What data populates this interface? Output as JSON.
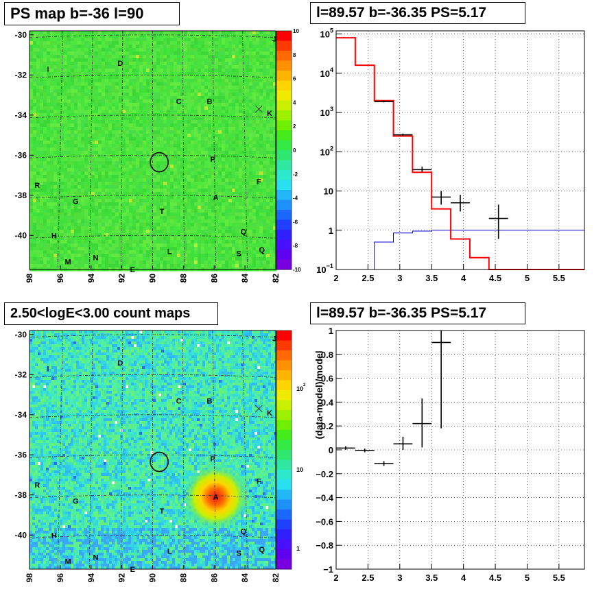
{
  "chart_data": [
    {
      "type": "heatmap",
      "title": "PS map b=-36 l=90",
      "xlabel": "",
      "ylabel": "",
      "xlim": [
        98,
        82
      ],
      "ylim": [
        -41.7,
        -29.8
      ],
      "x_ticks": [
        "98",
        "96",
        "94",
        "92",
        "90",
        "88",
        "86",
        "84",
        "82"
      ],
      "y_ticks": [
        "-30",
        "-32",
        "-34",
        "-36",
        "-38",
        "-40"
      ],
      "colorbar": {
        "min": -10,
        "max": 10,
        "ticks": [
          "10",
          "8",
          "6",
          "4",
          "2",
          "0",
          "-2",
          "-4",
          "-6",
          "-8",
          "-10"
        ]
      },
      "labels": [
        {
          "text": "I",
          "l": 96.8,
          "b": -31.7
        },
        {
          "text": "D",
          "l": 92.1,
          "b": -31.4
        },
        {
          "text": "J",
          "l": 82.1,
          "b": -30.2
        },
        {
          "text": "C",
          "l": 88.3,
          "b": -33.3
        },
        {
          "text": "B",
          "l": 86.3,
          "b": -33.3
        },
        {
          "text": "K",
          "l": 82.4,
          "b": -33.9
        },
        {
          "text": "P",
          "l": 86.1,
          "b": -36.2
        },
        {
          "text": "F",
          "l": 83.1,
          "b": -37.3
        },
        {
          "text": "R",
          "l": 97.5,
          "b": -37.5
        },
        {
          "text": "A",
          "l": 85.9,
          "b": -38.1
        },
        {
          "text": "G",
          "l": 95.0,
          "b": -38.3
        },
        {
          "text": "T",
          "l": 89.4,
          "b": -38.8
        },
        {
          "text": "Q",
          "l": 84.1,
          "b": -39.8
        },
        {
          "text": "H",
          "l": 96.4,
          "b": -40.0
        },
        {
          "text": "L",
          "l": 88.9,
          "b": -40.8
        },
        {
          "text": "S",
          "l": 84.4,
          "b": -40.9
        },
        {
          "text": "Q",
          "l": 82.9,
          "b": -40.7
        },
        {
          "text": "M",
          "l": 95.5,
          "b": -41.3
        },
        {
          "text": "N",
          "l": 93.7,
          "b": -41.1
        },
        {
          "text": "E",
          "l": 91.3,
          "b": -41.7
        }
      ],
      "marker": {
        "type": "circle",
        "l": 89.57,
        "b": -36.35,
        "radius": 0.55
      },
      "cross": {
        "l": 83.1,
        "b": -33.7
      }
    },
    {
      "type": "line",
      "title": "l=89.57 b=-36.35 PS=5.17",
      "xlabel": "",
      "ylabel": "",
      "xlim": [
        2,
        5.9
      ],
      "ylim": [
        0.1,
        120000
      ],
      "yscale": "log",
      "x_ticks": [
        "2",
        "2.5",
        "3",
        "3.5",
        "4",
        "4.5",
        "5",
        "5.5"
      ],
      "y_ticks": [
        {
          "value": 100000,
          "base": "10",
          "exp": "5"
        },
        {
          "value": 10000,
          "base": "10",
          "exp": "4"
        },
        {
          "value": 1000,
          "base": "10",
          "exp": "3"
        },
        {
          "value": 100,
          "base": "10",
          "exp": "2"
        },
        {
          "value": 10,
          "base": "10",
          "exp": ""
        },
        {
          "value": 1,
          "base": "1",
          "exp": ""
        },
        {
          "value": 0.1,
          "base": "10",
          "exp": "−1"
        }
      ],
      "grid": true,
      "red_model": {
        "edges": [
          2,
          2.3,
          2.6,
          2.9,
          3.2,
          3.5,
          3.8,
          4.1,
          4.4,
          5.9
        ],
        "values": [
          80000,
          16000,
          2000,
          250,
          30,
          3.5,
          0.6,
          0.2,
          0.1
        ]
      },
      "blue_model": {
        "edges": [
          2.6,
          2.9,
          3.2,
          3.5,
          3.8,
          5.9
        ],
        "values": [
          0.5,
          0.85,
          0.95,
          1.0,
          1.0
        ]
      },
      "data_points": [
        {
          "x": 2.75,
          "y": 1900,
          "xerr": 0.15,
          "ylo": 1800,
          "yhi": 2000
        },
        {
          "x": 3.05,
          "y": 270,
          "xerr": 0.15,
          "ylo": 250,
          "yhi": 290
        },
        {
          "x": 3.35,
          "y": 35,
          "xerr": 0.15,
          "ylo": 30,
          "yhi": 42
        },
        {
          "x": 3.65,
          "y": 7,
          "xerr": 0.15,
          "ylo": 4.5,
          "yhi": 10
        },
        {
          "x": 3.95,
          "y": 5,
          "xerr": 0.15,
          "ylo": 3,
          "yhi": 8
        },
        {
          "x": 4.55,
          "y": 2,
          "xerr": 0.15,
          "ylo": 0.6,
          "yhi": 4.5
        }
      ]
    },
    {
      "type": "heatmap",
      "title": "2.50<logE<3.00 count maps",
      "xlabel": "",
      "ylabel": "",
      "xlim": [
        98,
        82
      ],
      "ylim": [
        -41.7,
        -29.8
      ],
      "x_ticks": [
        "98",
        "96",
        "94",
        "92",
        "90",
        "88",
        "86",
        "84",
        "82"
      ],
      "y_ticks": [
        "-30",
        "-32",
        "-34",
        "-36",
        "-38",
        "-40"
      ],
      "colorbar": {
        "scale": "log",
        "ticks": [
          {
            "label": "10",
            "exp": "2"
          },
          {
            "label": "10",
            "exp": ""
          },
          {
            "label": "1",
            "exp": ""
          }
        ]
      },
      "hotspot": {
        "l": 85.9,
        "b": -38.1
      },
      "marker": {
        "type": "circle",
        "l": 89.57,
        "b": -36.35,
        "radius": 0.55
      }
    },
    {
      "type": "scatter",
      "title": "l=89.57 b=-36.35 PS=5.17",
      "xlabel": "",
      "ylabel": "(data-model)/model",
      "xlim": [
        2,
        5.9
      ],
      "ylim": [
        -1,
        1
      ],
      "x_ticks": [
        "2",
        "2.5",
        "3",
        "3.5",
        "4",
        "4.5",
        "5",
        "5.5"
      ],
      "y_ticks": [
        "1",
        "0.8",
        "0.6",
        "0.4",
        "0.2",
        "0",
        "−0.2",
        "−0.4",
        "−0.6",
        "−0.8",
        "−1"
      ],
      "grid": true,
      "data_points": [
        {
          "x": 2.15,
          "y": 0.015,
          "xerr": 0.15,
          "ylo": 0.0,
          "yhi": 0.03
        },
        {
          "x": 2.45,
          "y": -0.005,
          "xerr": 0.15,
          "ylo": -0.02,
          "yhi": 0.01
        },
        {
          "x": 2.75,
          "y": -0.115,
          "xerr": 0.15,
          "ylo": -0.135,
          "yhi": -0.095
        },
        {
          "x": 3.05,
          "y": 0.05,
          "xerr": 0.15,
          "ylo": 0.0,
          "yhi": 0.11
        },
        {
          "x": 3.35,
          "y": 0.22,
          "xerr": 0.15,
          "ylo": 0.02,
          "yhi": 0.43
        },
        {
          "x": 3.65,
          "y": 0.9,
          "xerr": 0.15,
          "ylo": 0.18,
          "yhi": 1.0
        }
      ]
    }
  ]
}
